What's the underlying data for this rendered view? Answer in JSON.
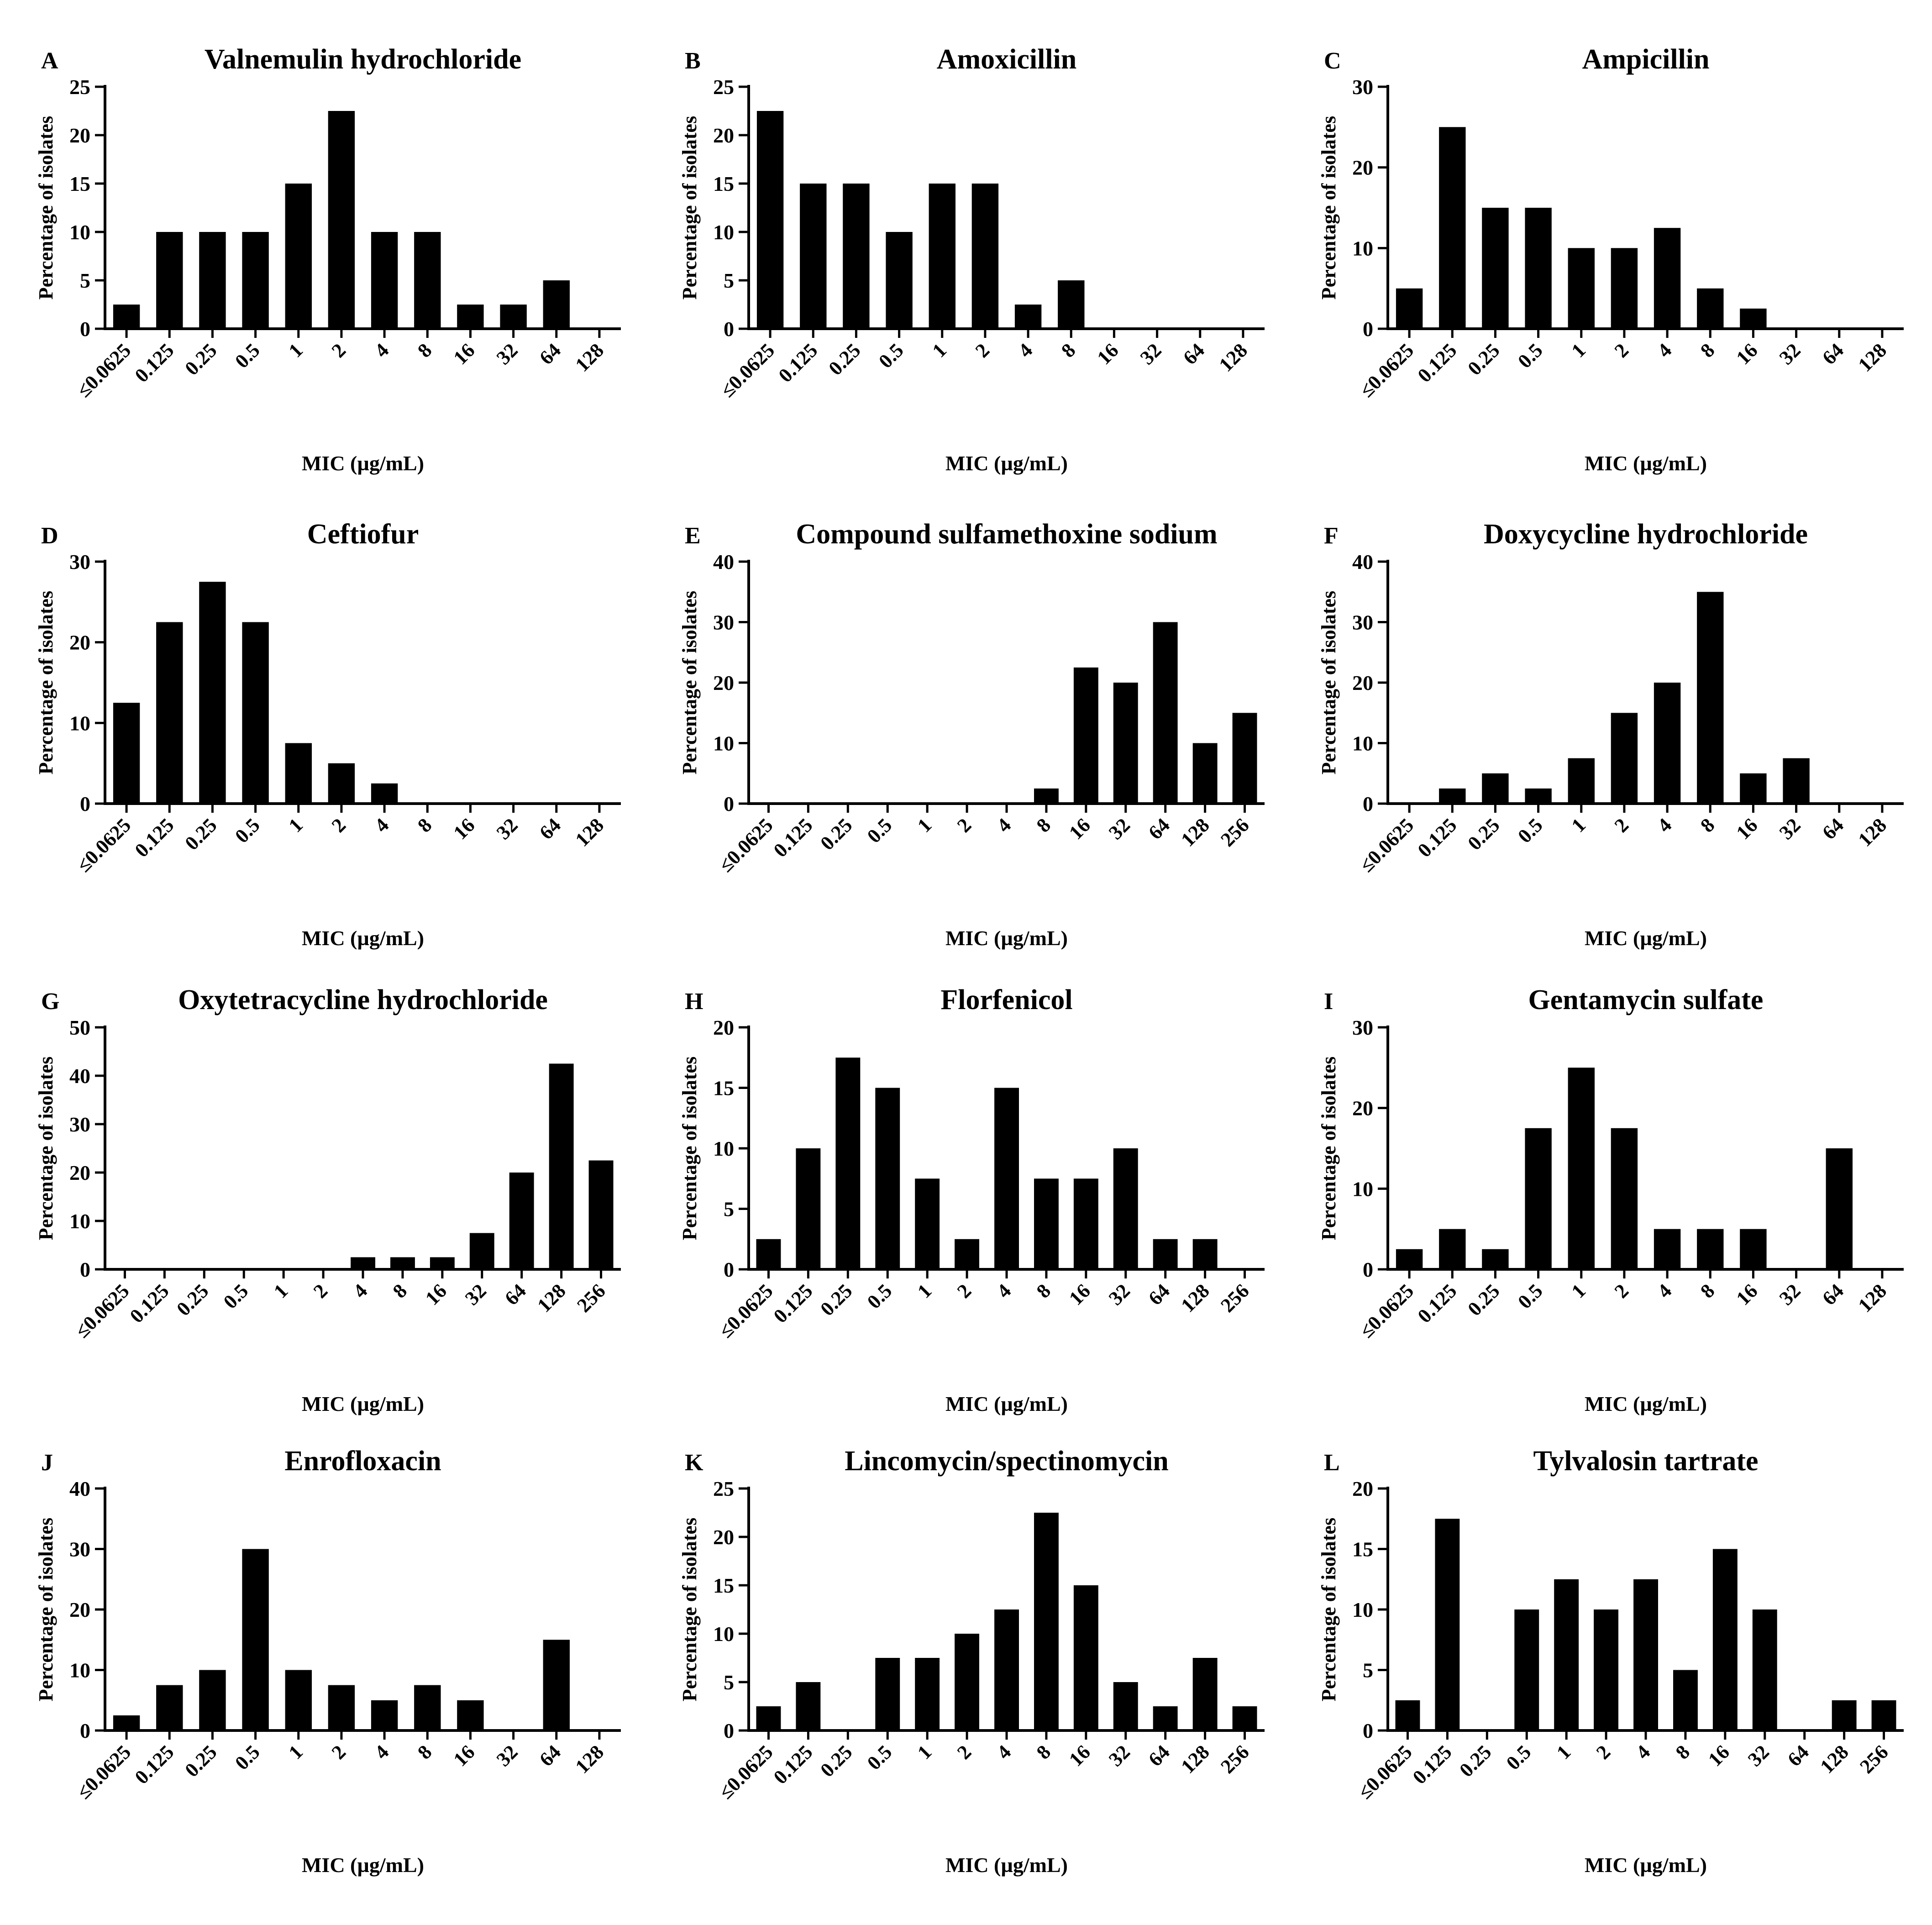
{
  "figure": {
    "x_axis_label": "MIC (µg/mL)",
    "y_axis_label": "Percentage of isolates",
    "bar_color": "#000000",
    "background_color": "#ffffff"
  },
  "chart_data": [
    {
      "panel": "A",
      "type": "bar",
      "title": "Valnemulin hydrochloride",
      "xlabel": "MIC (µg/mL)",
      "ylabel": "Percentage of isolates",
      "categories": [
        "≤0.0625",
        "0.125",
        "0.25",
        "0.5",
        "1",
        "2",
        "4",
        "8",
        "16",
        "32",
        "64",
        "128"
      ],
      "values": [
        2.5,
        10,
        10,
        10,
        15,
        22.5,
        10,
        10,
        2.5,
        2.5,
        5,
        0
      ],
      "ylim": [
        0,
        25
      ],
      "yticks": [
        0,
        5,
        10,
        15,
        20,
        25
      ]
    },
    {
      "panel": "B",
      "type": "bar",
      "title": "Amoxicillin",
      "xlabel": "MIC (µg/mL)",
      "ylabel": "Percentage of isolates",
      "categories": [
        "≤0.0625",
        "0.125",
        "0.25",
        "0.5",
        "1",
        "2",
        "4",
        "8",
        "16",
        "32",
        "64",
        "128"
      ],
      "values": [
        22.5,
        15,
        15,
        10,
        15,
        15,
        2.5,
        5,
        0,
        0,
        0,
        0
      ],
      "ylim": [
        0,
        25
      ],
      "yticks": [
        0,
        5,
        10,
        15,
        20,
        25
      ]
    },
    {
      "panel": "C",
      "type": "bar",
      "title": "Ampicillin",
      "xlabel": "MIC (µg/mL)",
      "ylabel": "Percentage of isolates",
      "categories": [
        "≤0.0625",
        "0.125",
        "0.25",
        "0.5",
        "1",
        "2",
        "4",
        "8",
        "16",
        "32",
        "64",
        "128"
      ],
      "values": [
        5,
        25,
        15,
        15,
        10,
        10,
        12.5,
        5,
        2.5,
        0,
        0,
        0
      ],
      "ylim": [
        0,
        30
      ],
      "yticks": [
        0,
        10,
        20,
        30
      ]
    },
    {
      "panel": "D",
      "type": "bar",
      "title": "Ceftiofur",
      "xlabel": "MIC (µg/mL)",
      "ylabel": "Percentage of isolates",
      "categories": [
        "≤0.0625",
        "0.125",
        "0.25",
        "0.5",
        "1",
        "2",
        "4",
        "8",
        "16",
        "32",
        "64",
        "128"
      ],
      "values": [
        12.5,
        22.5,
        27.5,
        22.5,
        7.5,
        5,
        2.5,
        0,
        0,
        0,
        0,
        0
      ],
      "ylim": [
        0,
        30
      ],
      "yticks": [
        0,
        10,
        20,
        30
      ]
    },
    {
      "panel": "E",
      "type": "bar",
      "title": "Compound sulfamethoxine sodium",
      "xlabel": "MIC (µg/mL)",
      "ylabel": "Percentage of isolates",
      "categories": [
        "≤0.0625",
        "0.125",
        "0.25",
        "0.5",
        "1",
        "2",
        "4",
        "8",
        "16",
        "32",
        "64",
        "128",
        "256"
      ],
      "values": [
        0,
        0,
        0,
        0,
        0,
        0,
        0,
        2.5,
        22.5,
        20,
        30,
        10,
        15
      ],
      "ylim": [
        0,
        40
      ],
      "yticks": [
        0,
        10,
        20,
        30,
        40
      ]
    },
    {
      "panel": "F",
      "type": "bar",
      "title": "Doxycycline hydrochloride",
      "xlabel": "MIC (µg/mL)",
      "ylabel": "Percentage of isolates",
      "categories": [
        "≤0.0625",
        "0.125",
        "0.25",
        "0.5",
        "1",
        "2",
        "4",
        "8",
        "16",
        "32",
        "64",
        "128"
      ],
      "values": [
        0,
        2.5,
        5,
        2.5,
        7.5,
        15,
        20,
        35,
        5,
        7.5,
        0,
        0
      ],
      "ylim": [
        0,
        40
      ],
      "yticks": [
        0,
        10,
        20,
        30,
        40
      ]
    },
    {
      "panel": "G",
      "type": "bar",
      "title": "Oxytetracycline hydrochloride",
      "xlabel": "MIC (µg/mL)",
      "ylabel": "Percentage of isolates",
      "categories": [
        "≤0.0625",
        "0.125",
        "0.25",
        "0.5",
        "1",
        "2",
        "4",
        "8",
        "16",
        "32",
        "64",
        "128",
        "256"
      ],
      "values": [
        0,
        0,
        0,
        0,
        0,
        0,
        2.5,
        2.5,
        2.5,
        7.5,
        20,
        42.5,
        22.5
      ],
      "ylim": [
        0,
        50
      ],
      "yticks": [
        0,
        10,
        20,
        30,
        40,
        50
      ]
    },
    {
      "panel": "H",
      "type": "bar",
      "title": "Florfenicol",
      "xlabel": "MIC (µg/mL)",
      "ylabel": "Percentage of isolates",
      "categories": [
        "≤0.0625",
        "0.125",
        "0.25",
        "0.5",
        "1",
        "2",
        "4",
        "8",
        "16",
        "32",
        "64",
        "128",
        "256"
      ],
      "values": [
        2.5,
        10,
        17.5,
        15,
        7.5,
        2.5,
        15,
        7.5,
        7.5,
        10,
        2.5,
        2.5,
        0
      ],
      "ylim": [
        0,
        20
      ],
      "yticks": [
        0,
        5,
        10,
        15,
        20
      ]
    },
    {
      "panel": "I",
      "type": "bar",
      "title": "Gentamycin sulfate",
      "xlabel": "MIC (µg/mL)",
      "ylabel": "Percentage of isolates",
      "categories": [
        "≤0.0625",
        "0.125",
        "0.25",
        "0.5",
        "1",
        "2",
        "4",
        "8",
        "16",
        "32",
        "64",
        "128"
      ],
      "values": [
        2.5,
        5,
        2.5,
        17.5,
        25,
        17.5,
        5,
        5,
        5,
        0,
        15,
        0
      ],
      "ylim": [
        0,
        30
      ],
      "yticks": [
        0,
        10,
        20,
        30
      ]
    },
    {
      "panel": "J",
      "type": "bar",
      "title": "Enrofloxacin",
      "xlabel": "MIC (µg/mL)",
      "ylabel": "Percentage of isolates",
      "categories": [
        "≤0.0625",
        "0.125",
        "0.25",
        "0.5",
        "1",
        "2",
        "4",
        "8",
        "16",
        "32",
        "64",
        "128"
      ],
      "values": [
        2.5,
        7.5,
        10,
        30,
        10,
        7.5,
        5,
        7.5,
        5,
        0,
        15,
        0
      ],
      "ylim": [
        0,
        40
      ],
      "yticks": [
        0,
        10,
        20,
        30,
        40
      ]
    },
    {
      "panel": "K",
      "type": "bar",
      "title": "Lincomycin/spectinomycin",
      "xlabel": "MIC (µg/mL)",
      "ylabel": "Percentage of isolates",
      "categories": [
        "≤0.0625",
        "0.125",
        "0.25",
        "0.5",
        "1",
        "2",
        "4",
        "8",
        "16",
        "32",
        "64",
        "128",
        "256"
      ],
      "values": [
        2.5,
        5,
        0,
        7.5,
        7.5,
        10,
        12.5,
        22.5,
        15,
        5,
        2.5,
        7.5,
        2.5
      ],
      "ylim": [
        0,
        25
      ],
      "yticks": [
        0,
        5,
        10,
        15,
        20,
        25
      ]
    },
    {
      "panel": "L",
      "type": "bar",
      "title": "Tylvalosin tartrate",
      "xlabel": "MIC (µg/mL)",
      "ylabel": "Percentage of isolates",
      "categories": [
        "≤0.0625",
        "0.125",
        "0.25",
        "0.5",
        "1",
        "2",
        "4",
        "8",
        "16",
        "32",
        "64",
        "128",
        "256"
      ],
      "values": [
        2.5,
        17.5,
        0,
        10,
        12.5,
        10,
        12.5,
        5,
        15,
        10,
        0,
        2.5,
        2.5
      ],
      "ylim": [
        0,
        20
      ],
      "yticks": [
        0,
        5,
        10,
        15,
        20
      ]
    }
  ]
}
